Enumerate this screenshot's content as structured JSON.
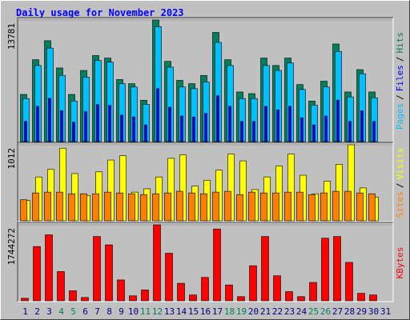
{
  "chart_data": [
    {
      "type": "bar",
      "title": "Daily usage for November 2023",
      "title_color": "#0000ff",
      "ylim": [
        0,
        13781
      ],
      "yticks": [
        13781
      ],
      "legend_separator": "/",
      "series": [
        {
          "name": "Pages",
          "color": "#00c0ff",
          "values": [
            4875,
            8625,
            10594,
            7500,
            4594,
            7313,
            9188,
            9000,
            6563,
            6188,
            4219,
            13031,
            8438,
            6188,
            6000,
            6750,
            11250,
            8625,
            4875,
            4875,
            8625,
            8063,
            8906,
            5906,
            4125,
            6188,
            10219,
            5063,
            7688,
            4969,
            null
          ]
        },
        {
          "name": "Files",
          "color": "#0000ff",
          "values": [
            2300,
            4000,
            4900,
            3500,
            2200,
            3400,
            4200,
            4100,
            3000,
            2800,
            1900,
            6000,
            3900,
            2900,
            2800,
            3200,
            5200,
            4000,
            2300,
            2300,
            4000,
            3600,
            4000,
            2700,
            1900,
            2900,
            4700,
            2300,
            3500,
            2300,
            null
          ]
        },
        {
          "name": "Hits",
          "color": "#00805c",
          "values": [
            5344,
            9281,
            11438,
            8344,
            5344,
            8063,
            9750,
            9469,
            7031,
            6563,
            4688,
            13781,
            9094,
            6938,
            6563,
            7500,
            12375,
            9281,
            5625,
            5438,
            9469,
            8625,
            9469,
            6469,
            4594,
            6844,
            11063,
            5625,
            8156,
            5625,
            null
          ]
        }
      ]
    },
    {
      "type": "bar",
      "ylim": [
        0,
        1012
      ],
      "yticks": [
        1012
      ],
      "legend_separator": "/",
      "series": [
        {
          "name": "Sites",
          "color": "#ff8000",
          "values": [
            281,
            371,
            382,
            382,
            360,
            360,
            360,
            382,
            371,
            360,
            349,
            360,
            371,
            393,
            371,
            360,
            382,
            393,
            349,
            382,
            371,
            371,
            382,
            382,
            349,
            371,
            393,
            393,
            371,
            360,
            null
          ]
        },
        {
          "name": "Visits",
          "color": "#ffff00",
          "values": [
            270,
            584,
            686,
            967,
            629,
            337,
            652,
            809,
            866,
            382,
            427,
            584,
            832,
            877,
            461,
            540,
            674,
            888,
            798,
            416,
            584,
            731,
            888,
            607,
            360,
            528,
            753,
            1012,
            438,
            315,
            null
          ]
        }
      ]
    },
    {
      "type": "bar",
      "ylim": [
        0,
        1744272
      ],
      "yticks": [
        1744272
      ],
      "categories": [
        "1",
        "2",
        "3",
        "4",
        "5",
        "6",
        "7",
        "8",
        "9",
        "10",
        "11",
        "12",
        "13",
        "14",
        "15",
        "16",
        "17",
        "18",
        "19",
        "20",
        "21",
        "22",
        "23",
        "24",
        "25",
        "26",
        "27",
        "28",
        "29",
        "30",
        "31"
      ],
      "category_colors": [
        "#000080",
        "#000080",
        "#000080",
        "#00805c",
        "#00805c",
        "#000080",
        "#000080",
        "#000080",
        "#000080",
        "#000080",
        "#00805c",
        "#00805c",
        "#000080",
        "#000080",
        "#000080",
        "#000080",
        "#000080",
        "#00805c",
        "#00805c",
        "#000080",
        "#000080",
        "#000080",
        "#000080",
        "#000080",
        "#00805c",
        "#00805c",
        "#000080",
        "#000080",
        "#000080",
        "#000080",
        "#000080"
      ],
      "series": [
        {
          "name": "KBytes",
          "color": "#ff0000",
          "values": [
            57504,
            1245920,
            1514272,
            670880,
            230016,
            76672,
            1475936,
            1284256,
            479200,
            115008,
            249184,
            1744272,
            1092576,
            402528,
            134176,
            536704,
            1648448,
            364192,
            95840,
            805056,
            1475936,
            575040,
            210848,
            95840,
            421696,
            1437600,
            1475936,
            882000,
            172512,
            134176,
            null
          ]
        }
      ]
    }
  ]
}
